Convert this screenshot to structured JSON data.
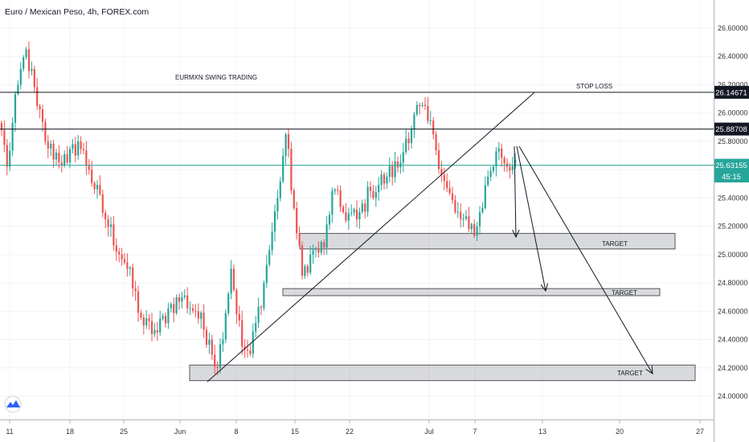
{
  "title": "Euro / Mexican Peso, 4h, FOREX.com",
  "chart_data": {
    "type": "candlestick",
    "ylim": [
      23.9,
      26.78
    ],
    "x_ticks": [
      "11",
      "18",
      "25",
      "Jun",
      "8",
      "15",
      "22",
      "Jul",
      "7",
      "13",
      "20",
      "27"
    ],
    "y_ticks": [
      "24.00000",
      "24.20000",
      "24.40000",
      "24.60000",
      "24.80000",
      "25.00000",
      "25.20000",
      "25.40000",
      "25.60000",
      "25.80000",
      "26.00000",
      "26.20000",
      "26.40000",
      "26.60000"
    ],
    "colors": {
      "up": "#26a69a",
      "down": "#ef5350",
      "current": "#26a69a"
    },
    "anchors": [
      [
        0,
        25.88
      ],
      [
        2,
        25.62
      ],
      [
        6,
        26.2
      ],
      [
        9,
        26.45
      ],
      [
        13,
        26.05
      ],
      [
        17,
        25.75
      ],
      [
        24,
        25.65
      ],
      [
        28,
        25.8
      ],
      [
        32,
        25.6
      ],
      [
        38,
        25.25
      ],
      [
        46,
        24.9
      ],
      [
        52,
        24.5
      ],
      [
        57,
        24.45
      ],
      [
        61,
        24.62
      ],
      [
        66,
        24.7
      ],
      [
        71,
        24.6
      ],
      [
        76,
        24.4
      ],
      [
        79,
        24.2
      ],
      [
        84,
        24.9
      ],
      [
        88,
        24.35
      ],
      [
        91,
        24.3
      ],
      [
        96,
        24.8
      ],
      [
        101,
        25.4
      ],
      [
        104,
        25.85
      ],
      [
        108,
        25.15
      ],
      [
        110,
        24.85
      ],
      [
        113,
        25.0
      ],
      [
        118,
        25.05
      ],
      [
        121,
        25.45
      ],
      [
        125,
        25.3
      ],
      [
        130,
        25.25
      ],
      [
        135,
        25.45
      ],
      [
        141,
        25.55
      ],
      [
        146,
        25.65
      ],
      [
        148,
        25.82
      ],
      [
        153,
        26.05
      ],
      [
        158,
        25.85
      ],
      [
        162,
        25.52
      ],
      [
        166,
        25.3
      ],
      [
        171,
        25.18
      ],
      [
        174,
        25.2
      ],
      [
        178,
        25.55
      ],
      [
        182,
        25.75
      ],
      [
        185,
        25.62
      ],
      [
        188,
        25.67
      ]
    ],
    "levels": [
      {
        "name": "stop-loss-line",
        "price": 26.14671,
        "label": "26.14671"
      },
      {
        "name": "resistance-line",
        "price": 25.88708,
        "label": "25.88708"
      },
      {
        "name": "current-price-line",
        "price": 25.63155,
        "label": "25.63155"
      }
    ],
    "countdown": "45:15",
    "annotations": {
      "strategy": "EURMXN SWING TRADING",
      "stop_loss": "STOP LOSS",
      "target_1": "TARGET",
      "target_2": "TARGET",
      "target_3": "TARGET"
    },
    "target_zones": [
      {
        "name": "target-zone-1",
        "low": 25.04,
        "high": 25.15
      },
      {
        "name": "target-zone-2",
        "low": 24.71,
        "high": 24.76
      },
      {
        "name": "target-zone-3",
        "low": 24.11,
        "high": 24.22
      }
    ]
  }
}
